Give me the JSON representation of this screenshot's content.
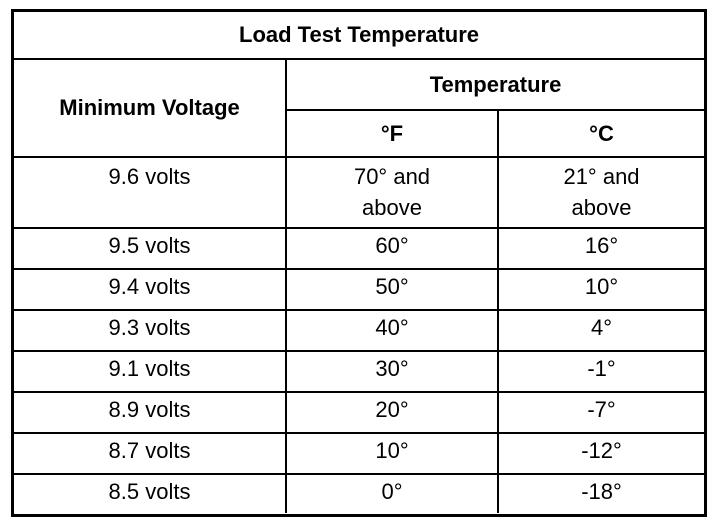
{
  "table": {
    "title": "Load Test Temperature",
    "header": {
      "min_voltage": "Minimum Voltage",
      "temperature": "Temperature",
      "unit_f": "°F",
      "unit_c": "°C"
    },
    "rows": [
      {
        "voltage": "9.6 volts",
        "f_line1": "70° and",
        "f_line2": "above",
        "c_line1": "21° and",
        "c_line2": "above"
      },
      {
        "voltage": "9.5 volts",
        "f": "60°",
        "c": "16°"
      },
      {
        "voltage": "9.4 volts",
        "f": "50°",
        "c": "10°"
      },
      {
        "voltage": "9.3 volts",
        "f": "40°",
        "c": "4°"
      },
      {
        "voltage": "9.1 volts",
        "f": "30°",
        "c": "-1°"
      },
      {
        "voltage": "8.9 volts",
        "f": "20°",
        "c": "-7°"
      },
      {
        "voltage": "8.7 volts",
        "f": "10°",
        "c": "-12°"
      },
      {
        "voltage": "8.5 volts",
        "f": "0°",
        "c": "-18°"
      }
    ]
  }
}
